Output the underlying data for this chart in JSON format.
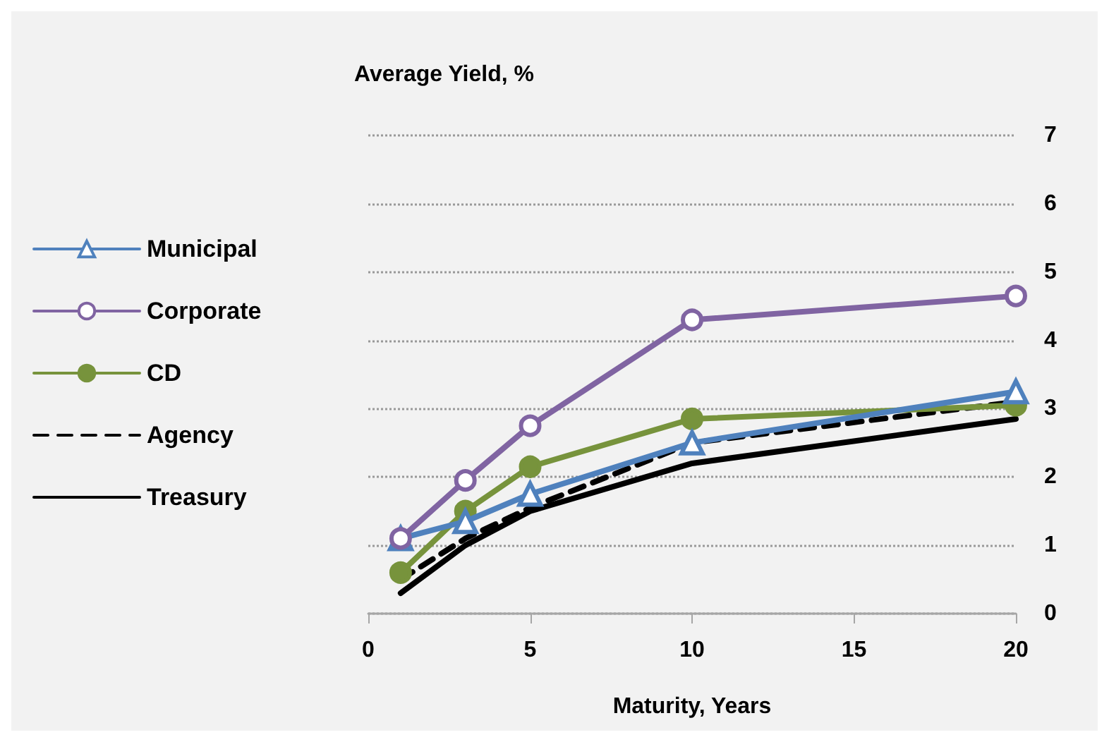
{
  "chart_data": {
    "type": "line",
    "title": "Average Yield, %",
    "xlabel": "Maturity, Years",
    "x": [
      1,
      3,
      5,
      10,
      20
    ],
    "series": [
      {
        "name": "Municipal",
        "color": "#4f81bd",
        "marker": "triangle",
        "line_style": "solid",
        "values": [
          1.1,
          1.35,
          1.75,
          2.5,
          3.25
        ]
      },
      {
        "name": "Corporate",
        "color": "#8064a2",
        "marker": "circle",
        "line_style": "solid",
        "values": [
          1.1,
          1.95,
          2.75,
          4.3,
          4.65
        ]
      },
      {
        "name": "CD",
        "color": "#77933c",
        "marker": "circle",
        "line_style": "solid",
        "values": [
          0.6,
          1.5,
          2.15,
          2.85,
          3.05
        ]
      },
      {
        "name": "Agency",
        "color": "#000000",
        "marker": "none",
        "line_style": "dashed",
        "values": [
          0.5,
          1.1,
          1.55,
          2.5,
          3.1
        ]
      },
      {
        "name": "Treasury",
        "color": "#000000",
        "marker": "none",
        "line_style": "solid",
        "values": [
          0.3,
          1.0,
          1.5,
          2.2,
          2.85
        ]
      }
    ],
    "xlim": [
      0,
      20
    ],
    "xticks": [
      0,
      5,
      10,
      15,
      20
    ],
    "ylim": [
      0,
      7
    ],
    "yticks": [
      0,
      1,
      2,
      3,
      4,
      5,
      6,
      7
    ],
    "grid": "y",
    "legend": "left"
  }
}
